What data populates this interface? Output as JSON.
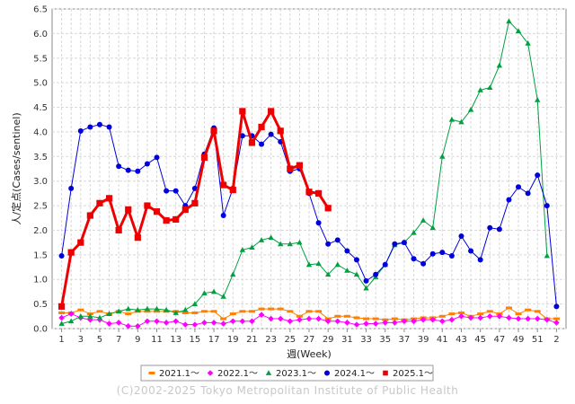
{
  "chart_data": {
    "type": "line",
    "xlabel": "週(Week)",
    "ylabel": "人/定点(Cases/sentinel)",
    "ylim": [
      0,
      6.5
    ],
    "xlim": [
      0,
      54
    ],
    "yticks": [
      "0.0",
      "0.5",
      "1.0",
      "1.5",
      "2.0",
      "2.5",
      "3.0",
      "3.5",
      "4.0",
      "4.5",
      "5.0",
      "5.5",
      "6.0",
      "6.5"
    ],
    "xtick_labels": [
      "1",
      "3",
      "5",
      "7",
      "9",
      "11",
      "13",
      "15",
      "17",
      "19",
      "21",
      "23",
      "25",
      "27",
      "29",
      "31",
      "33",
      "35",
      "37",
      "39",
      "41",
      "43",
      "45",
      "47",
      "49",
      "51",
      "2"
    ],
    "grid": true,
    "legend_position": "bottom",
    "series": [
      {
        "name": "2021.1～",
        "color": "#ff8000",
        "marker": "bar",
        "values": [
          0.32,
          0.32,
          0.38,
          0.3,
          0.35,
          0.3,
          0.35,
          0.3,
          0.35,
          0.35,
          0.35,
          0.35,
          0.35,
          0.32,
          0.32,
          0.35,
          0.35,
          0.2,
          0.3,
          0.35,
          0.35,
          0.4,
          0.4,
          0.4,
          0.35,
          0.25,
          0.35,
          0.35,
          0.2,
          0.25,
          0.25,
          0.22,
          0.2,
          0.2,
          0.18,
          0.2,
          0.18,
          0.2,
          0.22,
          0.22,
          0.25,
          0.3,
          0.32,
          0.25,
          0.3,
          0.35,
          0.3,
          0.42,
          0.3,
          0.38,
          0.35,
          0.2,
          0.2
        ]
      },
      {
        "name": "2022.1～",
        "color": "#ff00ff",
        "marker": "diamond",
        "values": [
          0.22,
          0.3,
          0.22,
          0.18,
          0.18,
          0.1,
          0.12,
          0.05,
          0.05,
          0.15,
          0.15,
          0.12,
          0.15,
          0.08,
          0.08,
          0.12,
          0.12,
          0.1,
          0.15,
          0.15,
          0.15,
          0.28,
          0.2,
          0.2,
          0.15,
          0.18,
          0.2,
          0.2,
          0.15,
          0.15,
          0.12,
          0.08,
          0.1,
          0.1,
          0.12,
          0.12,
          0.15,
          0.15,
          0.18,
          0.18,
          0.15,
          0.18,
          0.25,
          0.22,
          0.22,
          0.25,
          0.25,
          0.22,
          0.2,
          0.2,
          0.2,
          0.18,
          0.12
        ]
      },
      {
        "name": "2023.1～",
        "color": "#00a040",
        "marker": "triangle",
        "values": [
          0.1,
          0.15,
          0.25,
          0.25,
          0.22,
          0.3,
          0.35,
          0.4,
          0.38,
          0.4,
          0.4,
          0.38,
          0.32,
          0.38,
          0.5,
          0.72,
          0.75,
          0.65,
          1.1,
          1.6,
          1.65,
          1.8,
          1.85,
          1.72,
          1.72,
          1.75,
          1.3,
          1.32,
          1.1,
          1.3,
          1.18,
          1.1,
          0.82,
          1.05,
          1.3,
          1.7,
          1.75,
          1.95,
          2.2,
          2.05,
          3.5,
          4.25,
          4.2,
          4.45,
          4.85,
          4.9,
          5.35,
          6.25,
          6.05,
          5.8,
          4.65,
          1.48
        ]
      },
      {
        "name": "2024.1～",
        "color": "#0000dd",
        "marker": "circle",
        "values": [
          1.48,
          2.85,
          4.02,
          4.1,
          4.15,
          4.1,
          3.3,
          3.22,
          3.2,
          3.35,
          3.48,
          2.8,
          2.8,
          2.5,
          2.85,
          3.55,
          4.08,
          2.3,
          2.85,
          3.92,
          3.92,
          3.75,
          3.95,
          3.8,
          3.2,
          3.25,
          2.75,
          2.15,
          1.72,
          1.8,
          1.58,
          1.4,
          0.97,
          1.1,
          1.3,
          1.72,
          1.75,
          1.42,
          1.32,
          1.52,
          1.55,
          1.48,
          1.88,
          1.58,
          1.4,
          2.05,
          2.02,
          2.62,
          2.88,
          2.75,
          3.12,
          2.5,
          0.45
        ]
      },
      {
        "name": "2025.1～",
        "color": "#ee0000",
        "marker": "square",
        "values": [
          0.45,
          1.55,
          1.75,
          2.3,
          2.55,
          2.65,
          2.0,
          2.42,
          1.85,
          2.5,
          2.38,
          2.2,
          2.22,
          2.42,
          2.55,
          3.48,
          4.02,
          2.92,
          2.82,
          4.42,
          3.78,
          4.1,
          4.42,
          4.02,
          3.25,
          3.32,
          2.78,
          2.75,
          2.45
        ]
      }
    ]
  },
  "copyright": "(C)2002-2025 Tokyo Metropolitan Institute of Public Health"
}
